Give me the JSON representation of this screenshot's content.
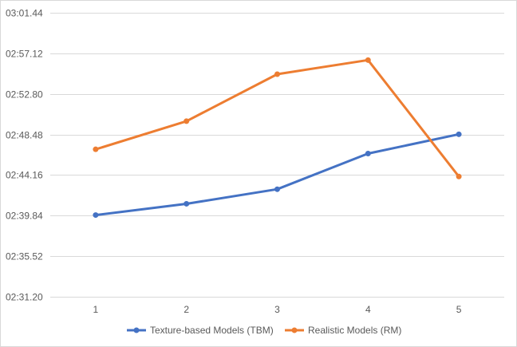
{
  "chart_data": {
    "type": "line",
    "title": "",
    "xlabel": "",
    "ylabel": "",
    "categories": [
      "1",
      "2",
      "3",
      "4",
      "5"
    ],
    "y_tick_labels": [
      "02:31.20",
      "02:35.52",
      "02:39.84",
      "02:44.16",
      "02:48.48",
      "02:52.80",
      "02:57.12",
      "03:01.44"
    ],
    "y_tick_values": [
      151.2,
      155.52,
      159.84,
      164.16,
      168.48,
      172.8,
      177.12,
      181.44
    ],
    "ylim": [
      151.2,
      181.44
    ],
    "y_unit": "seconds",
    "grid": true,
    "legend_position": "bottom",
    "series": [
      {
        "name": "Texture-based Models (TBM)",
        "color": "#4472c4",
        "values": [
          159.9,
          161.1,
          162.65,
          166.45,
          168.5
        ]
      },
      {
        "name": "Realistic Models (RM)",
        "color": "#ed7d31",
        "values": [
          166.9,
          169.9,
          174.9,
          176.4,
          164.0
        ]
      }
    ]
  }
}
